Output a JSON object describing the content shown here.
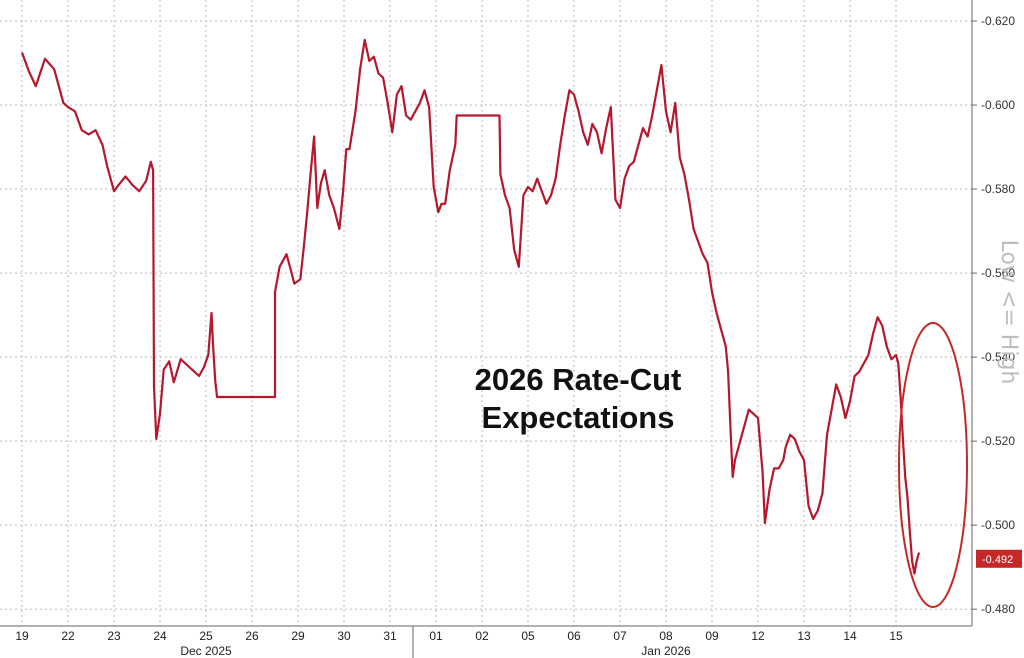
{
  "chart_data": {
    "type": "line",
    "title": "2026 Rate-Cut\nExpectations",
    "ylabel": "Low <= High",
    "ylim": [
      -0.476,
      -0.625
    ],
    "yticks": [
      -0.62,
      -0.6,
      -0.58,
      -0.56,
      -0.54,
      -0.52,
      -0.5,
      -0.48
    ],
    "ytick_labels": [
      "-0.620",
      "-0.600",
      "-0.580",
      "-0.560",
      "-0.540",
      "-0.520",
      "-0.500",
      "-0.480"
    ],
    "grid": true,
    "x_day_labels": [
      "19",
      "22",
      "23",
      "24",
      "25",
      "26",
      "29",
      "30",
      "31",
      "01",
      "02",
      "05",
      "06",
      "07",
      "08",
      "09",
      "12",
      "13",
      "14",
      "15"
    ],
    "x_month_labels": [
      {
        "label": "Dec 2025",
        "at": "25"
      },
      {
        "label": "Jan 2026",
        "at": "08"
      }
    ],
    "last_value": -0.492,
    "last_value_label": "-0.492",
    "series": [
      {
        "color": "#b5172c",
        "points": [
          [
            0.0,
            -0.6125
          ],
          [
            0.15,
            -0.608
          ],
          [
            0.3,
            -0.6045
          ],
          [
            0.5,
            -0.611
          ],
          [
            0.7,
            -0.6085
          ],
          [
            0.9,
            -0.6005
          ],
          [
            1.0,
            -0.5995
          ],
          [
            1.15,
            -0.5985
          ],
          [
            1.3,
            -0.594
          ],
          [
            1.45,
            -0.593
          ],
          [
            1.6,
            -0.594
          ],
          [
            1.75,
            -0.5905
          ],
          [
            1.85,
            -0.5855
          ],
          [
            2.0,
            -0.5795
          ],
          [
            2.1,
            -0.581
          ],
          [
            2.25,
            -0.583
          ],
          [
            2.4,
            -0.581
          ],
          [
            2.55,
            -0.5795
          ],
          [
            2.7,
            -0.582
          ],
          [
            2.8,
            -0.5865
          ],
          [
            2.85,
            -0.5845
          ],
          [
            2.87,
            -0.533
          ],
          [
            2.92,
            -0.5205
          ],
          [
            3.0,
            -0.5265
          ],
          [
            3.08,
            -0.537
          ],
          [
            3.2,
            -0.539
          ],
          [
            3.3,
            -0.534
          ],
          [
            3.45,
            -0.5395
          ],
          [
            3.6,
            -0.538
          ],
          [
            3.75,
            -0.5365
          ],
          [
            3.85,
            -0.5355
          ],
          [
            3.95,
            -0.5375
          ],
          [
            4.05,
            -0.5405
          ],
          [
            4.12,
            -0.5505
          ],
          [
            4.15,
            -0.5435
          ],
          [
            4.2,
            -0.5345
          ],
          [
            4.24,
            -0.5305
          ],
          [
            5.5,
            -0.5305
          ],
          [
            5.5,
            -0.5555
          ],
          [
            5.6,
            -0.5615
          ],
          [
            5.75,
            -0.5645
          ],
          [
            5.85,
            -0.5605
          ],
          [
            5.92,
            -0.5575
          ],
          [
            6.05,
            -0.5585
          ],
          [
            6.12,
            -0.5655
          ],
          [
            6.2,
            -0.5745
          ],
          [
            6.28,
            -0.5845
          ],
          [
            6.35,
            -0.5925
          ],
          [
            6.42,
            -0.5755
          ],
          [
            6.5,
            -0.5815
          ],
          [
            6.58,
            -0.5845
          ],
          [
            6.68,
            -0.5785
          ],
          [
            6.78,
            -0.5755
          ],
          [
            6.9,
            -0.5705
          ],
          [
            6.98,
            -0.5795
          ],
          [
            7.05,
            -0.5895
          ],
          [
            7.12,
            -0.5895
          ],
          [
            7.25,
            -0.5985
          ],
          [
            7.35,
            -0.6085
          ],
          [
            7.45,
            -0.6155
          ],
          [
            7.55,
            -0.6105
          ],
          [
            7.65,
            -0.6115
          ],
          [
            7.75,
            -0.6075
          ],
          [
            7.85,
            -0.6065
          ],
          [
            7.95,
            -0.6005
          ],
          [
            8.05,
            -0.5935
          ],
          [
            8.15,
            -0.6025
          ],
          [
            8.25,
            -0.6045
          ],
          [
            8.35,
            -0.5975
          ],
          [
            8.45,
            -0.5965
          ],
          [
            8.55,
            -0.5985
          ],
          [
            8.65,
            -0.6005
          ],
          [
            8.75,
            -0.6035
          ],
          [
            8.85,
            -0.5995
          ],
          [
            8.95,
            -0.5805
          ],
          [
            9.05,
            -0.5745
          ],
          [
            9.12,
            -0.5765
          ],
          [
            9.2,
            -0.5765
          ],
          [
            9.3,
            -0.5845
          ],
          [
            9.42,
            -0.5905
          ],
          [
            9.45,
            -0.5975
          ],
          [
            10.38,
            -0.5975
          ],
          [
            10.4,
            -0.5835
          ],
          [
            10.5,
            -0.5785
          ],
          [
            10.6,
            -0.5755
          ],
          [
            10.7,
            -0.5655
          ],
          [
            10.8,
            -0.5615
          ],
          [
            10.9,
            -0.5785
          ],
          [
            11.0,
            -0.5805
          ],
          [
            11.1,
            -0.5795
          ],
          [
            11.2,
            -0.5825
          ],
          [
            11.3,
            -0.5795
          ],
          [
            11.4,
            -0.5765
          ],
          [
            11.5,
            -0.5785
          ],
          [
            11.6,
            -0.5825
          ],
          [
            11.7,
            -0.5905
          ],
          [
            11.8,
            -0.5975
          ],
          [
            11.9,
            -0.6035
          ],
          [
            12.0,
            -0.6025
          ],
          [
            12.1,
            -0.5985
          ],
          [
            12.2,
            -0.5935
          ],
          [
            12.3,
            -0.5905
          ],
          [
            12.4,
            -0.5955
          ],
          [
            12.5,
            -0.5935
          ],
          [
            12.6,
            -0.5885
          ],
          [
            12.7,
            -0.5945
          ],
          [
            12.8,
            -0.5995
          ],
          [
            12.9,
            -0.5775
          ],
          [
            13.0,
            -0.5755
          ],
          [
            13.1,
            -0.5825
          ],
          [
            13.2,
            -0.5855
          ],
          [
            13.3,
            -0.5865
          ],
          [
            13.4,
            -0.5905
          ],
          [
            13.5,
            -0.5945
          ],
          [
            13.6,
            -0.5925
          ],
          [
            13.7,
            -0.5975
          ],
          [
            13.8,
            -0.6035
          ],
          [
            13.9,
            -0.6095
          ],
          [
            14.0,
            -0.5985
          ],
          [
            14.1,
            -0.5935
          ],
          [
            14.2,
            -0.6005
          ],
          [
            14.3,
            -0.5875
          ],
          [
            14.4,
            -0.5835
          ],
          [
            14.5,
            -0.5775
          ],
          [
            14.6,
            -0.5705
          ],
          [
            14.7,
            -0.5675
          ],
          [
            14.8,
            -0.5645
          ],
          [
            14.9,
            -0.5625
          ],
          [
            15.0,
            -0.5555
          ],
          [
            15.1,
            -0.5505
          ],
          [
            15.2,
            -0.5465
          ],
          [
            15.3,
            -0.5425
          ],
          [
            15.35,
            -0.5365
          ],
          [
            15.4,
            -0.5235
          ],
          [
            15.45,
            -0.5115
          ],
          [
            15.5,
            -0.5155
          ],
          [
            15.6,
            -0.5195
          ],
          [
            15.7,
            -0.5235
          ],
          [
            15.8,
            -0.5275
          ],
          [
            15.9,
            -0.5265
          ],
          [
            16.0,
            -0.5255
          ],
          [
            16.1,
            -0.5125
          ],
          [
            16.15,
            -0.5005
          ],
          [
            16.25,
            -0.5085
          ],
          [
            16.35,
            -0.5135
          ],
          [
            16.45,
            -0.5135
          ],
          [
            16.55,
            -0.5155
          ],
          [
            16.6,
            -0.5185
          ],
          [
            16.7,
            -0.5215
          ],
          [
            16.8,
            -0.5205
          ],
          [
            16.9,
            -0.5175
          ],
          [
            17.0,
            -0.5155
          ],
          [
            17.1,
            -0.5045
          ],
          [
            17.2,
            -0.5015
          ],
          [
            17.3,
            -0.5035
          ],
          [
            17.4,
            -0.5075
          ],
          [
            17.5,
            -0.5215
          ],
          [
            17.6,
            -0.5275
          ],
          [
            17.7,
            -0.5335
          ],
          [
            17.8,
            -0.5305
          ],
          [
            17.9,
            -0.5255
          ],
          [
            18.0,
            -0.5295
          ],
          [
            18.1,
            -0.5355
          ],
          [
            18.2,
            -0.5365
          ],
          [
            18.3,
            -0.5385
          ],
          [
            18.4,
            -0.5405
          ],
          [
            18.5,
            -0.5455
          ],
          [
            18.6,
            -0.5495
          ],
          [
            18.7,
            -0.5475
          ],
          [
            18.8,
            -0.5425
          ],
          [
            18.9,
            -0.5395
          ],
          [
            19.0,
            -0.5405
          ],
          [
            19.05,
            -0.5385
          ],
          [
            19.1,
            -0.5305
          ],
          [
            19.15,
            -0.5205
          ],
          [
            19.2,
            -0.5115
          ],
          [
            19.25,
            -0.5065
          ],
          [
            19.3,
            -0.4985
          ],
          [
            19.35,
            -0.4915
          ],
          [
            19.4,
            -0.4885
          ],
          [
            19.45,
            -0.4915
          ],
          [
            19.5,
            -0.4935
          ]
        ]
      }
    ]
  }
}
